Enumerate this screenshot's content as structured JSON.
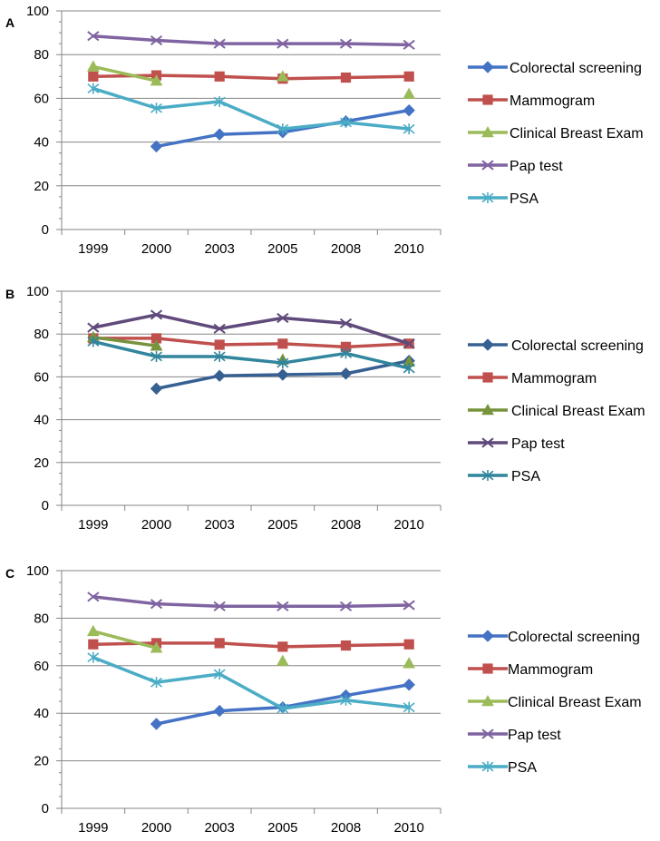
{
  "chart_data": [
    {
      "panel_label": "A",
      "type": "line",
      "categories": [
        "1999",
        "2000",
        "2003",
        "2005",
        "2008",
        "2010"
      ],
      "ylim": [
        0,
        100
      ],
      "yticks": [
        0,
        20,
        40,
        60,
        80,
        100
      ],
      "legend_position": "right",
      "series": [
        {
          "name": "Colorectal screening",
          "color": "#4472C4",
          "marker": "diamond",
          "values": [
            null,
            38,
            43.5,
            44.5,
            49.5,
            54.5
          ]
        },
        {
          "name": "Mammogram",
          "color": "#C0504D",
          "marker": "square",
          "values": [
            70,
            70.5,
            70,
            69,
            69.5,
            70
          ]
        },
        {
          "name": "Clinical Breast Exam",
          "color": "#9BBB59",
          "marker": "triangle",
          "values": [
            74.5,
            68,
            null,
            70,
            null,
            62
          ]
        },
        {
          "name": "Pap test",
          "color": "#8064A2",
          "marker": "x",
          "values": [
            88.5,
            86.5,
            85,
            85,
            85,
            84.5
          ]
        },
        {
          "name": "PSA",
          "color": "#4BACC6",
          "marker": "star",
          "values": [
            64.5,
            55.5,
            58.5,
            46,
            49,
            46
          ]
        }
      ]
    },
    {
      "panel_label": "B",
      "type": "line",
      "categories": [
        "1999",
        "2000",
        "2003",
        "2005",
        "2008",
        "2010"
      ],
      "ylim": [
        0,
        100
      ],
      "yticks": [
        0,
        20,
        40,
        60,
        80,
        100
      ],
      "legend_position": "right",
      "series": [
        {
          "name": "Colorectal screening",
          "color": "#376092",
          "marker": "diamond",
          "values": [
            null,
            54.5,
            60.5,
            61,
            61.5,
            67.5
          ]
        },
        {
          "name": "Mammogram",
          "color": "#C0504D",
          "marker": "square",
          "values": [
            78,
            78,
            75,
            75.5,
            74,
            75.5
          ]
        },
        {
          "name": "Clinical Breast Exam",
          "color": "#77933C",
          "marker": "triangle",
          "values": [
            78.5,
            74.5,
            null,
            68,
            null,
            67
          ]
        },
        {
          "name": "Pap test",
          "color": "#604A7B",
          "marker": "x",
          "values": [
            83,
            89,
            82.5,
            87.5,
            85,
            75.5
          ]
        },
        {
          "name": "PSA",
          "color": "#31859C",
          "marker": "star",
          "values": [
            76.5,
            69.5,
            69.5,
            66.5,
            71,
            64
          ]
        }
      ]
    },
    {
      "panel_label": "C",
      "type": "line",
      "categories": [
        "1999",
        "2000",
        "2003",
        "2005",
        "2008",
        "2010"
      ],
      "ylim": [
        0,
        100
      ],
      "yticks": [
        0,
        20,
        40,
        60,
        80,
        100
      ],
      "legend_position": "right",
      "series": [
        {
          "name": "Colorectal screening",
          "color": "#4472C4",
          "marker": "diamond",
          "values": [
            null,
            35.5,
            41,
            42.5,
            47.5,
            52
          ]
        },
        {
          "name": "Mammogram",
          "color": "#C0504D",
          "marker": "square",
          "values": [
            69,
            69.5,
            69.5,
            68,
            68.5,
            69
          ]
        },
        {
          "name": "Clinical Breast Exam",
          "color": "#9BBB59",
          "marker": "triangle",
          "values": [
            74.5,
            67.5,
            null,
            62,
            null,
            61
          ]
        },
        {
          "name": "Pap test",
          "color": "#8064A2",
          "marker": "x",
          "values": [
            89,
            86,
            85,
            85,
            85,
            85.5
          ]
        },
        {
          "name": "PSA",
          "color": "#4BACC6",
          "marker": "star",
          "values": [
            63.5,
            53,
            56.5,
            42,
            45.5,
            42.5
          ]
        }
      ]
    }
  ]
}
